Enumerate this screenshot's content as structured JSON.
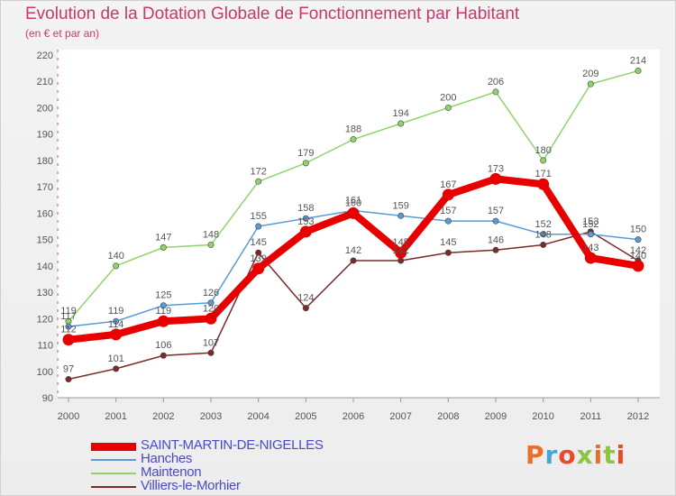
{
  "title": "Evolution de la Dotation Globale de Fonctionnement par Habitant",
  "subtitle": "(en € et par an)",
  "logo": {
    "text": "Proxiti",
    "colors": [
      "#e8702a",
      "#3fa9d8",
      "#e84a2a",
      "#8bc43f",
      "#e8702a",
      "#8bc43f",
      "#e84a2a"
    ]
  },
  "chart_data": {
    "type": "line",
    "title": "Evolution de la Dotation Globale de Fonctionnement par Habitant",
    "ylabel": "(en € et par an)",
    "xlabel": "",
    "categories": [
      "2000",
      "2001",
      "2002",
      "2003",
      "2004",
      "2005",
      "2006",
      "2007",
      "2008",
      "2009",
      "2010",
      "2011",
      "2012"
    ],
    "ylim": [
      90,
      220
    ],
    "yticks": [
      90,
      100,
      110,
      120,
      130,
      140,
      150,
      160,
      170,
      180,
      190,
      200,
      210,
      220
    ],
    "grid": false,
    "legend_position": "bottom-left",
    "series": [
      {
        "name": "SAINT-MARTIN-DE-NIGELLES",
        "color": "#e80000",
        "emphasis": "thick",
        "values": [
          112,
          114,
          119,
          120,
          139,
          153,
          160,
          145,
          167,
          173,
          171,
          143,
          140
        ]
      },
      {
        "name": "Hanches",
        "color": "#5b9bd5",
        "emphasis": "normal",
        "values": [
          117,
          119,
          125,
          126,
          155,
          158,
          161,
          159,
          157,
          157,
          152,
          152,
          150
        ]
      },
      {
        "name": "Maintenon",
        "color": "#8fd46a",
        "emphasis": "normal",
        "values": [
          119,
          140,
          147,
          148,
          172,
          179,
          188,
          194,
          200,
          206,
          180,
          209,
          214
        ]
      },
      {
        "name": "Villiers-le-Morhier",
        "color": "#7a2a2a",
        "emphasis": "normal",
        "values": [
          97,
          101,
          106,
          107,
          145,
          124,
          142,
          142,
          145,
          146,
          148,
          153,
          142
        ]
      }
    ]
  }
}
